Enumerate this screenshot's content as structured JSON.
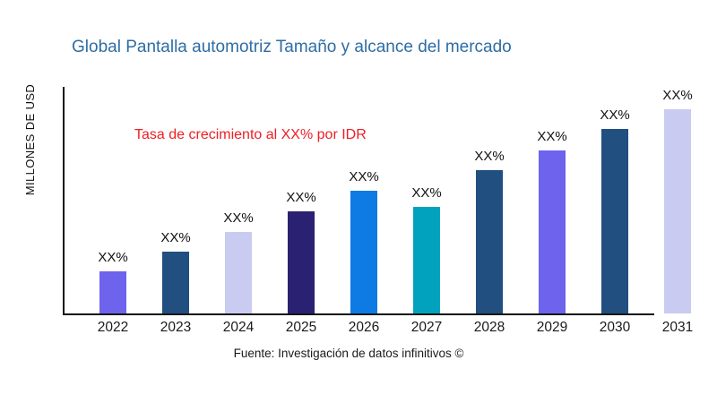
{
  "title": {
    "text": "Global Pantalla automotriz Tamaño y alcance del mercado",
    "color": "#2e6da4"
  },
  "y_axis_label": "MILLONES DE USD",
  "annotation": {
    "text": "Tasa de crecimiento al XX% por IDR",
    "color": "#ed1f24"
  },
  "source": "Fuente: Investigación de datos infinitivos ©",
  "chart_data": {
    "type": "bar",
    "title": "Global Pantalla automotriz Tamaño y alcance del mercado",
    "xlabel": "",
    "ylabel": "MILLONES DE USD",
    "categories": [
      "2022",
      "2023",
      "2024",
      "2025",
      "2026",
      "2027",
      "2028",
      "2029",
      "2030",
      "2031"
    ],
    "values": [
      47,
      69,
      91,
      114,
      137,
      119,
      160,
      182,
      206,
      228
    ],
    "value_note": "y-axis has no numeric ticks; values are relative bar heights in px read from the image",
    "bar_labels": [
      "XX%",
      "XX%",
      "XX%",
      "XX%",
      "XX%",
      "XX%",
      "XX%",
      "XX%",
      "XX%",
      "XX%"
    ],
    "bar_colors": [
      "#6e63ec",
      "#204f80",
      "#c9cbf1",
      "#2a2172",
      "#0e7ae3",
      "#01a2bd",
      "#204f80",
      "#6e63ec",
      "#204f80",
      "#c9cbf1"
    ],
    "annotation": "Tasa de crecimiento al XX% por IDR",
    "grid": false,
    "legend": false,
    "background": "#ffffff",
    "axis_color": "#151515"
  }
}
